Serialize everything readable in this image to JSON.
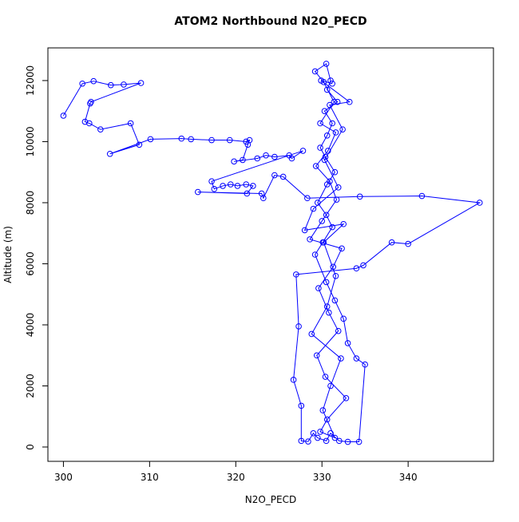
{
  "chart_data": {
    "type": "line",
    "title": "ATOM2 Northbound N2O_PECD",
    "x_label": "N2O_PECD",
    "y_label": "Altitude (m)",
    "xlim": [
      298.2,
      349.9
    ],
    "ylim": [
      -470,
      13070
    ],
    "xticks": [
      300,
      310,
      320,
      330,
      340
    ],
    "yticks": [
      0,
      2000,
      4000,
      6000,
      8000,
      10000,
      12000
    ],
    "markers": true,
    "series": [
      {
        "color": "#0000ff",
        "x": [
          300,
          302.2,
          303.5,
          305.5,
          307,
          309,
          303.2,
          303.1,
          302.5,
          303,
          304.3,
          307.8,
          308.8,
          305.4,
          310.1,
          313.7,
          314.8,
          317.2,
          319.3,
          321.2,
          321.6,
          321.4,
          320.8,
          319.8,
          322.5,
          323.5,
          324.5,
          326.2,
          326.5,
          327.8,
          317.2,
          317.5,
          318.5,
          319.4,
          320.2,
          321.2,
          322,
          321.3,
          315.6,
          323,
          323.2,
          324.5,
          325.5,
          328.3,
          334.4,
          341.6,
          348.3,
          340,
          338.1,
          334.8,
          334,
          327,
          327.3,
          326.7,
          327.6,
          327.6,
          328.4,
          329,
          329.5,
          330.5,
          331,
          332,
          333,
          334.3,
          335,
          334,
          333,
          332.5,
          331.5,
          330.5,
          329.2,
          330.1,
          331.2,
          330.5,
          329.5,
          330.6,
          331.5,
          330.4,
          329.8,
          330.6,
          331.2,
          330.3,
          331.8,
          330.6,
          331,
          330.5,
          329.2,
          330.2,
          331.4,
          329.8,
          331.6,
          330.7,
          329.3,
          330.9,
          331.7,
          330,
          328.6,
          332.3,
          331.3,
          329.6,
          330.8,
          331.9,
          329.4,
          330.4,
          332.8,
          330.6,
          329.8,
          331.5,
          330.1,
          331,
          332.2,
          328.8,
          330.6,
          331.6,
          330.2,
          332.5,
          328,
          329,
          331.9,
          330.3,
          332.4,
          330.9,
          333.2,
          329.9,
          331.2
        ],
        "values": [
          10850,
          11900,
          11980,
          11850,
          11870,
          11920,
          11300,
          11250,
          10650,
          10600,
          10400,
          10600,
          9900,
          9600,
          10080,
          10100,
          10080,
          10050,
          10050,
          10000,
          10050,
          9900,
          9400,
          9350,
          9450,
          9550,
          9500,
          9550,
          9450,
          9700,
          8700,
          8450,
          8550,
          8600,
          8550,
          8600,
          8550,
          8300,
          8350,
          8300,
          8150,
          8900,
          8850,
          8150,
          8200,
          8220,
          8000,
          6650,
          6700,
          5950,
          5850,
          5650,
          3950,
          2200,
          1350,
          200,
          180,
          450,
          300,
          200,
          450,
          200,
          170,
          170,
          2700,
          2900,
          3400,
          4200,
          4800,
          5400,
          6300,
          6700,
          7200,
          7600,
          8000,
          8600,
          9000,
          9500,
          9800,
          10200,
          10600,
          11000,
          11300,
          11700,
          12000,
          12550,
          12300,
          11950,
          11300,
          10600,
          10300,
          9700,
          9200,
          8700,
          8100,
          7400,
          6800,
          6500,
          5900,
          5200,
          4400,
          3800,
          3000,
          2300,
          1600,
          900,
          500,
          300,
          1200,
          2000,
          2900,
          3700,
          4600,
          5600,
          6700,
          7300,
          7100,
          7800,
          8500,
          9400,
          10400,
          11200,
          11300,
          12000,
          11900
        ]
      }
    ]
  }
}
